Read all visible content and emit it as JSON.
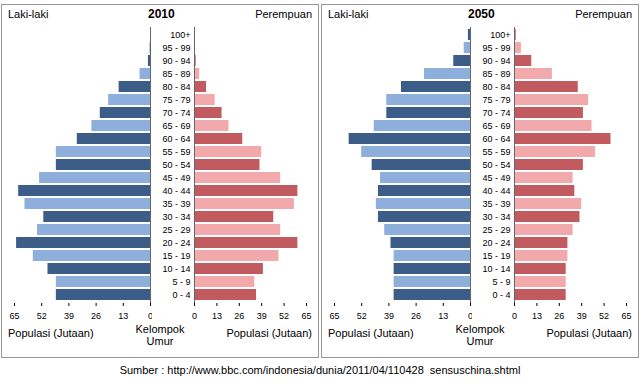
{
  "source": "Sumber : http://www.bbc.com/indonesia/dunia/2011/04/110428  sensuschina.shtml",
  "chart_data": [
    {
      "type": "bar",
      "title": "2010",
      "orientation": "horizontal",
      "x_label": "Populasi (Jutaan)",
      "y_label": "Kelompok Umur",
      "categories": [
        "0 - 4",
        "5 - 9",
        "10 - 14",
        "15 - 19",
        "20 - 24",
        "25 - 29",
        "30 - 34",
        "35 - 39",
        "40 - 44",
        "45 - 49",
        "50 - 54",
        "55 - 59",
        "60 - 64",
        "65 - 69",
        "70 - 74",
        "75 - 79",
        "80 - 84",
        "85 - 89",
        "90 - 94",
        "95 - 99",
        "100+"
      ],
      "xlim": [
        0,
        65
      ],
      "xticks": [
        0,
        13,
        26,
        39,
        52,
        65
      ],
      "series": [
        {
          "name": "Laki-laki",
          "values": [
            45,
            45,
            49,
            56,
            64,
            54,
            51,
            60,
            63,
            53,
            45,
            45,
            35,
            28,
            24,
            20,
            15,
            5,
            1,
            0.3,
            0
          ],
          "colors": [
            "#3c5d88",
            "#8eaedc",
            "#3c5d88",
            "#8eaedc",
            "#3c5d88",
            "#8eaedc",
            "#3c5d88",
            "#8eaedc",
            "#3c5d88",
            "#8eaedc",
            "#3c5d88",
            "#8eaedc",
            "#3c5d88",
            "#8eaedc",
            "#3c5d88",
            "#8eaedc",
            "#3c5d88",
            "#8eaedc",
            "#3c5d88",
            "#8eaedc",
            "#3c5d88"
          ]
        },
        {
          "name": "Perempuan",
          "values": [
            36,
            35,
            40,
            49,
            60,
            50,
            46,
            58,
            60,
            50,
            38,
            39,
            28,
            20,
            16,
            12,
            7,
            3,
            1,
            0.5,
            0
          ],
          "colors": [
            "#c25b5f",
            "#f2a9ab",
            "#c25b5f",
            "#f2a9ab",
            "#c25b5f",
            "#f2a9ab",
            "#c25b5f",
            "#f2a9ab",
            "#c25b5f",
            "#f2a9ab",
            "#c25b5f",
            "#f2a9ab",
            "#c25b5f",
            "#f2a9ab",
            "#c25b5f",
            "#f2a9ab",
            "#c25b5f",
            "#f2a9ab",
            "#c25b5f",
            "#f2a9ab",
            "#c25b5f"
          ]
        }
      ]
    },
    {
      "type": "bar",
      "title": "2050",
      "orientation": "horizontal",
      "x_label": "Populasi (Jutaan)",
      "y_label": "Kelompok Umur",
      "categories": [
        "0 - 4",
        "5 - 9",
        "10 - 14",
        "15 - 19",
        "20 - 24",
        "25 - 29",
        "30 - 34",
        "35 - 39",
        "40 - 44",
        "45 - 49",
        "50 - 54",
        "55 - 59",
        "60 - 64",
        "65 - 69",
        "70 - 74",
        "75 - 79",
        "80 - 84",
        "85 - 89",
        "90 - 94",
        "95 - 99",
        "100+"
      ],
      "xlim": [
        0,
        65
      ],
      "xticks": [
        0,
        13,
        26,
        39,
        52,
        65
      ],
      "series": [
        {
          "name": "Laki-laki",
          "values": [
            36.5,
            36.5,
            36.5,
            36.5,
            38,
            41,
            44,
            45,
            44,
            43,
            47,
            52,
            58,
            46,
            40,
            40,
            33,
            22,
            8,
            3,
            1
          ],
          "colors": [
            "#3c5d88",
            "#8eaedc",
            "#3c5d88",
            "#8eaedc",
            "#3c5d88",
            "#8eaedc",
            "#3c5d88",
            "#8eaedc",
            "#3c5d88",
            "#8eaedc",
            "#3c5d88",
            "#8eaedc",
            "#3c5d88",
            "#8eaedc",
            "#3c5d88",
            "#8eaedc",
            "#3c5d88",
            "#8eaedc",
            "#3c5d88",
            "#8eaedc",
            "#3c5d88"
          ]
        },
        {
          "name": "Perempuan",
          "values": [
            30,
            30,
            30,
            31,
            31,
            34,
            38,
            39,
            35,
            34,
            40,
            47,
            56,
            45,
            40,
            43,
            37,
            22,
            10,
            4,
            1
          ],
          "colors": [
            "#c25b5f",
            "#f2a9ab",
            "#c25b5f",
            "#f2a9ab",
            "#c25b5f",
            "#f2a9ab",
            "#c25b5f",
            "#f2a9ab",
            "#c25b5f",
            "#f2a9ab",
            "#c25b5f",
            "#f2a9ab",
            "#c25b5f",
            "#f2a9ab",
            "#c25b5f",
            "#f2a9ab",
            "#c25b5f",
            "#f2a9ab",
            "#c25b5f",
            "#f2a9ab",
            "#c25b5f"
          ]
        }
      ]
    }
  ]
}
